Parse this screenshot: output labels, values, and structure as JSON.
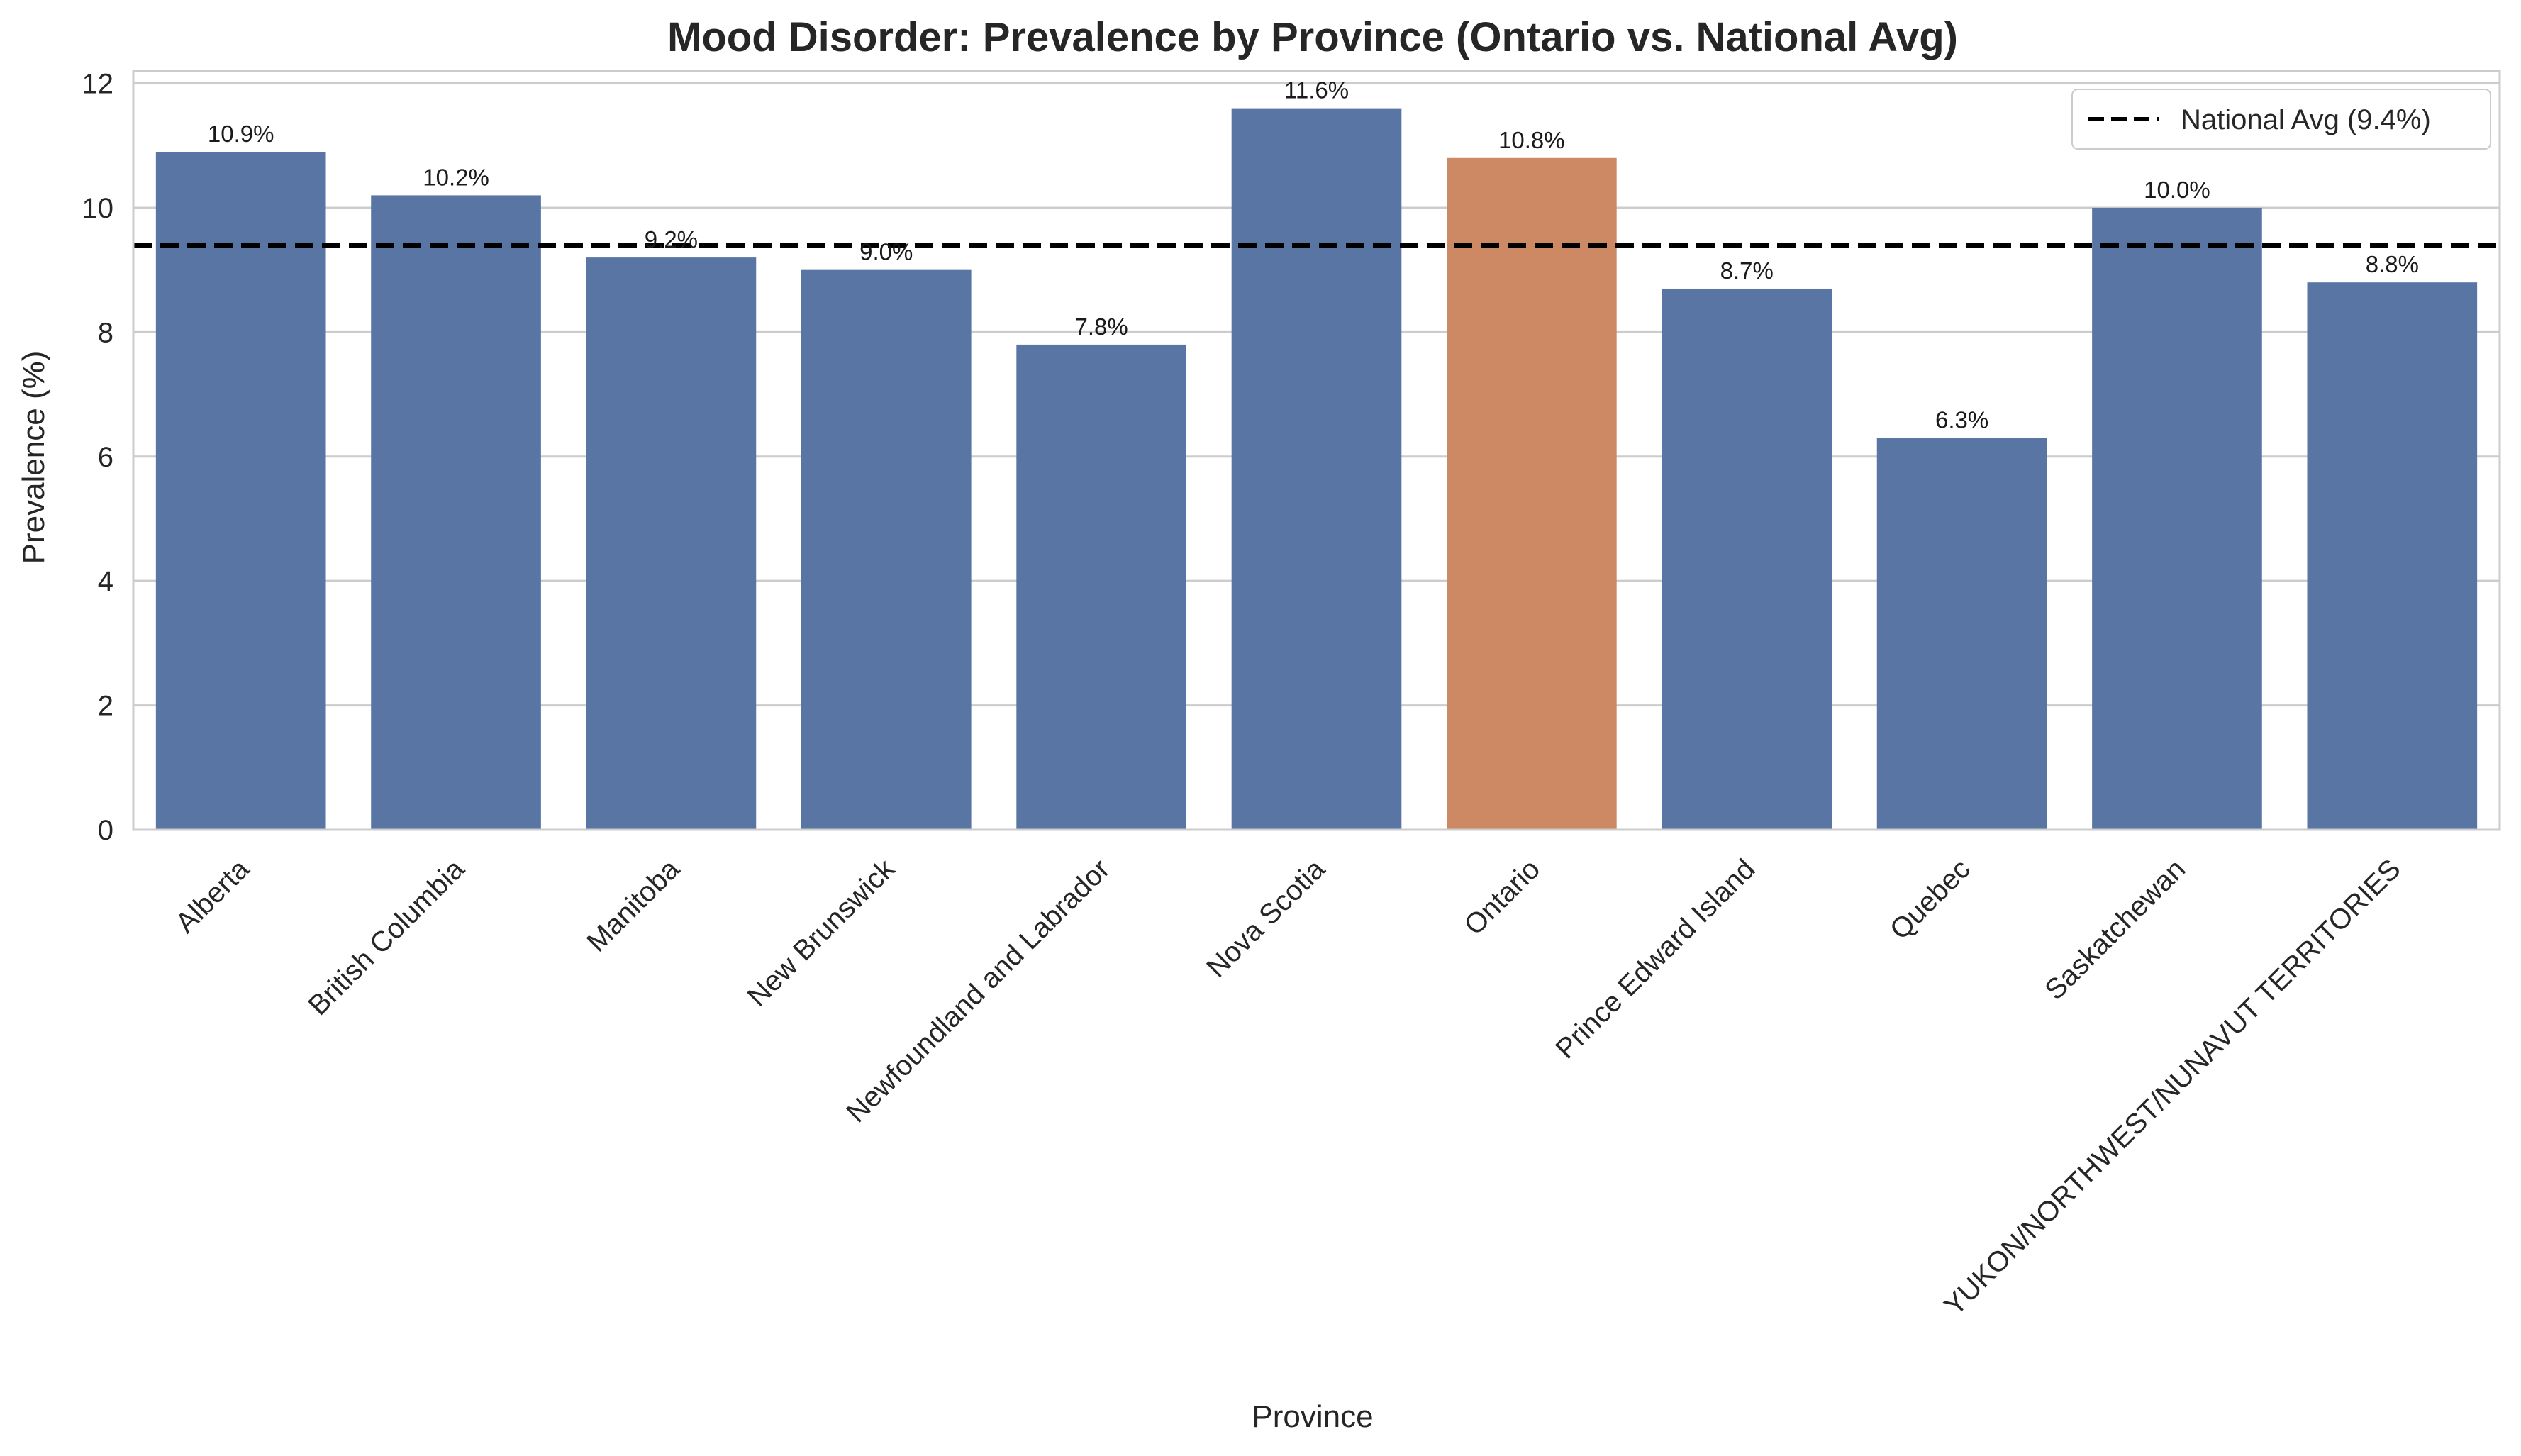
{
  "chart_data": {
    "type": "bar",
    "title": "Mood Disorder: Prevalence by Province (Ontario vs. National Avg)",
    "xlabel": "Province",
    "ylabel": "Prevalence (%)",
    "ylim": [
      0,
      12.2
    ],
    "yticks": [
      0,
      2,
      4,
      6,
      8,
      10,
      12
    ],
    "grid": "horizontal",
    "legend_position": "top-right",
    "categories": [
      "Alberta",
      "British Columbia",
      "Manitoba",
      "New Brunswick",
      "Newfoundland and Labrador",
      "Nova Scotia",
      "Ontario",
      "Prince Edward Island",
      "Quebec",
      "Saskatchewan",
      "YUKON/NORTHWEST/NUNAVUT TERRITORIES"
    ],
    "values": [
      10.9,
      10.2,
      9.2,
      9.0,
      7.8,
      11.6,
      10.8,
      8.7,
      6.3,
      10.0,
      8.8
    ],
    "labels": [
      "10.9%",
      "10.2%",
      "9.2%",
      "9.0%",
      "7.8%",
      "11.6%",
      "10.8%",
      "8.7%",
      "6.3%",
      "10.0%",
      "8.8%"
    ],
    "highlight_category": "Ontario",
    "reference_line": {
      "value": 9.4,
      "label": "National Avg (9.4%)",
      "style": "dashed"
    },
    "colors": {
      "bar": "#5875a4",
      "highlight": "#cc8963",
      "reference": "#000000",
      "grid": "#cccccc",
      "frame": "#cccccc"
    }
  }
}
